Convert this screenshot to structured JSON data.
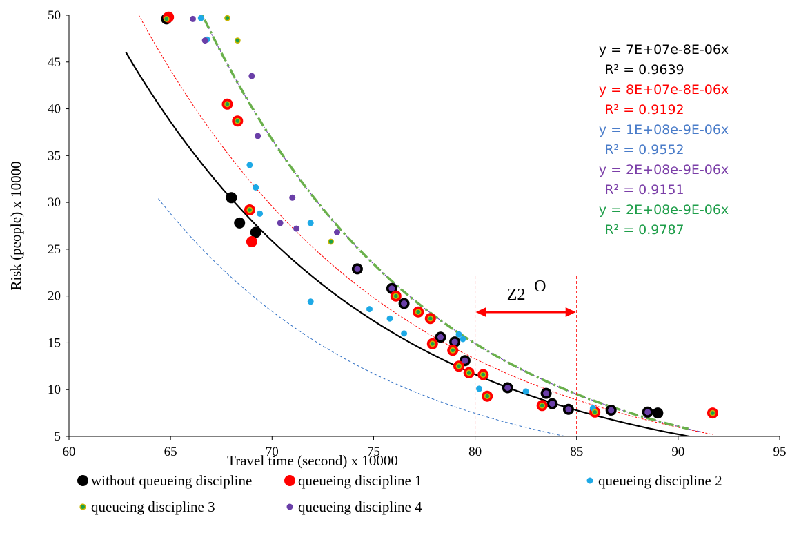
{
  "colors": {
    "s0": "#000000",
    "s1": "#ff0000",
    "s2": "#1ea9e6",
    "s3_fill": "#1aa14a",
    "s3_ring": "#c8b400",
    "s4": "#6a3fa8",
    "trend_s2": "#2f6fc4",
    "trend_s3": "#6ab04c",
    "eq_s0": "#000000",
    "eq_s1": "#ff0000",
    "eq_s2": "#4a7cc9",
    "eq_s3": "#7b3fa8",
    "eq_s4": "#1f9e4a",
    "zone": "#ff0000"
  },
  "chart_data": {
    "type": "scatter",
    "title": "",
    "xlabel": "Travel time (second) x 10000",
    "ylabel": "Risk (people) x 10000",
    "xlim": [
      60,
      95
    ],
    "ylim": [
      5,
      50
    ],
    "xticks": [
      60,
      65,
      70,
      75,
      80,
      85,
      90,
      95
    ],
    "yticks": [
      5,
      10,
      15,
      20,
      25,
      30,
      35,
      40,
      45,
      50
    ],
    "grid": false,
    "legend_position": "bottom",
    "series": [
      {
        "name": "without queueing discipline",
        "points": [
          [
            64.8,
            49.6
          ],
          [
            68.0,
            30.5
          ],
          [
            68.4,
            27.8
          ],
          [
            69.2,
            26.8
          ],
          [
            74.2,
            22.9
          ],
          [
            75.9,
            20.8
          ],
          [
            76.5,
            19.2
          ],
          [
            78.3,
            15.6
          ],
          [
            79.0,
            15.1
          ],
          [
            79.5,
            13.1
          ],
          [
            81.6,
            10.2
          ],
          [
            83.5,
            9.6
          ],
          [
            83.8,
            8.5
          ],
          [
            84.6,
            7.9
          ],
          [
            86.7,
            7.8
          ],
          [
            88.5,
            7.6
          ],
          [
            89.0,
            7.5
          ]
        ]
      },
      {
        "name": "queueing discipline 1",
        "points": [
          [
            64.9,
            49.8
          ],
          [
            67.8,
            40.5
          ],
          [
            68.3,
            38.7
          ],
          [
            68.9,
            29.2
          ],
          [
            69.0,
            25.8
          ],
          [
            76.1,
            20.0
          ],
          [
            77.2,
            18.3
          ],
          [
            77.8,
            17.6
          ],
          [
            77.9,
            14.9
          ],
          [
            78.9,
            14.2
          ],
          [
            79.2,
            12.5
          ],
          [
            79.7,
            11.8
          ],
          [
            80.4,
            11.6
          ],
          [
            80.6,
            9.3
          ],
          [
            83.3,
            8.3
          ],
          [
            85.9,
            7.6
          ],
          [
            91.7,
            7.5
          ]
        ]
      },
      {
        "name": "queueing discipline 2",
        "points": [
          [
            66.5,
            49.7
          ],
          [
            66.8,
            47.4
          ],
          [
            68.9,
            34.0
          ],
          [
            69.2,
            31.6
          ],
          [
            69.4,
            28.8
          ],
          [
            71.9,
            27.8
          ],
          [
            71.9,
            19.4
          ],
          [
            74.8,
            18.6
          ],
          [
            75.8,
            17.6
          ],
          [
            76.5,
            16.0
          ],
          [
            79.2,
            15.9
          ],
          [
            79.4,
            15.4
          ],
          [
            80.2,
            10.1
          ],
          [
            82.5,
            9.8
          ],
          [
            85.8,
            8.0
          ]
        ]
      },
      {
        "name": "queueing discipline 3",
        "points": [
          [
            64.8,
            49.6
          ],
          [
            67.8,
            49.7
          ],
          [
            68.3,
            47.3
          ],
          [
            67.8,
            40.5
          ],
          [
            68.3,
            38.7
          ],
          [
            68.9,
            29.2
          ],
          [
            72.9,
            25.8
          ],
          [
            76.1,
            20.0
          ],
          [
            77.2,
            18.3
          ],
          [
            77.8,
            17.6
          ],
          [
            77.9,
            14.9
          ],
          [
            78.9,
            14.2
          ],
          [
            79.2,
            12.5
          ],
          [
            79.7,
            11.8
          ],
          [
            80.4,
            11.6
          ],
          [
            80.6,
            9.3
          ],
          [
            83.3,
            8.3
          ],
          [
            85.9,
            7.6
          ],
          [
            91.7,
            7.5
          ]
        ]
      },
      {
        "name": "queueing discipline 4",
        "points": [
          [
            66.1,
            49.6
          ],
          [
            66.7,
            47.3
          ],
          [
            69.0,
            43.5
          ],
          [
            69.3,
            37.1
          ],
          [
            71.0,
            30.5
          ],
          [
            73.2,
            26.8
          ],
          [
            70.4,
            27.8
          ],
          [
            71.2,
            27.2
          ],
          [
            74.2,
            22.9
          ],
          [
            75.9,
            20.8
          ],
          [
            76.5,
            19.2
          ],
          [
            78.3,
            15.6
          ],
          [
            79.0,
            15.1
          ],
          [
            79.5,
            13.1
          ],
          [
            81.6,
            10.2
          ],
          [
            83.5,
            9.6
          ],
          [
            83.8,
            8.5
          ],
          [
            84.6,
            7.9
          ],
          [
            86.7,
            7.8
          ],
          [
            88.5,
            7.6
          ]
        ]
      }
    ],
    "trendlines": [
      {
        "series": "without queueing discipline",
        "equation": "y = 7E+07e-8E-06x",
        "r2": "R² = 0.9639",
        "a": 70000000.0,
        "b": 8e-06
      },
      {
        "series": "queueing discipline 1",
        "equation": "y = 8E+07e-8E-06x",
        "r2": "R² = 0.9192",
        "a": 80000000.0,
        "b": 8e-06
      },
      {
        "series": "queueing discipline 2",
        "equation": "y = 1E+08e-9E-06x",
        "r2": "R² = 0.9552",
        "a": 100000000.0,
        "b": 9e-06
      },
      {
        "series": "queueing discipline 3",
        "equation": "y = 2E+08e-9E-06x",
        "r2": "R² = 0.9151",
        "a": 200000000.0,
        "b": 9e-06
      },
      {
        "series": "queueing discipline 4",
        "equation": "y = 2E+08e-9E-06x",
        "r2": "R² = 0.9787",
        "a": 200000000.0,
        "b": 9e-06
      }
    ],
    "annotation": {
      "label": "Z2",
      "superscript": "O",
      "x_start": 80,
      "x_end": 85
    }
  },
  "legend": {
    "items": [
      "without queueing discipline",
      "queueing discipline 1",
      "queueing discipline 2",
      "queueing discipline 3",
      "queueing discipline 4"
    ]
  }
}
